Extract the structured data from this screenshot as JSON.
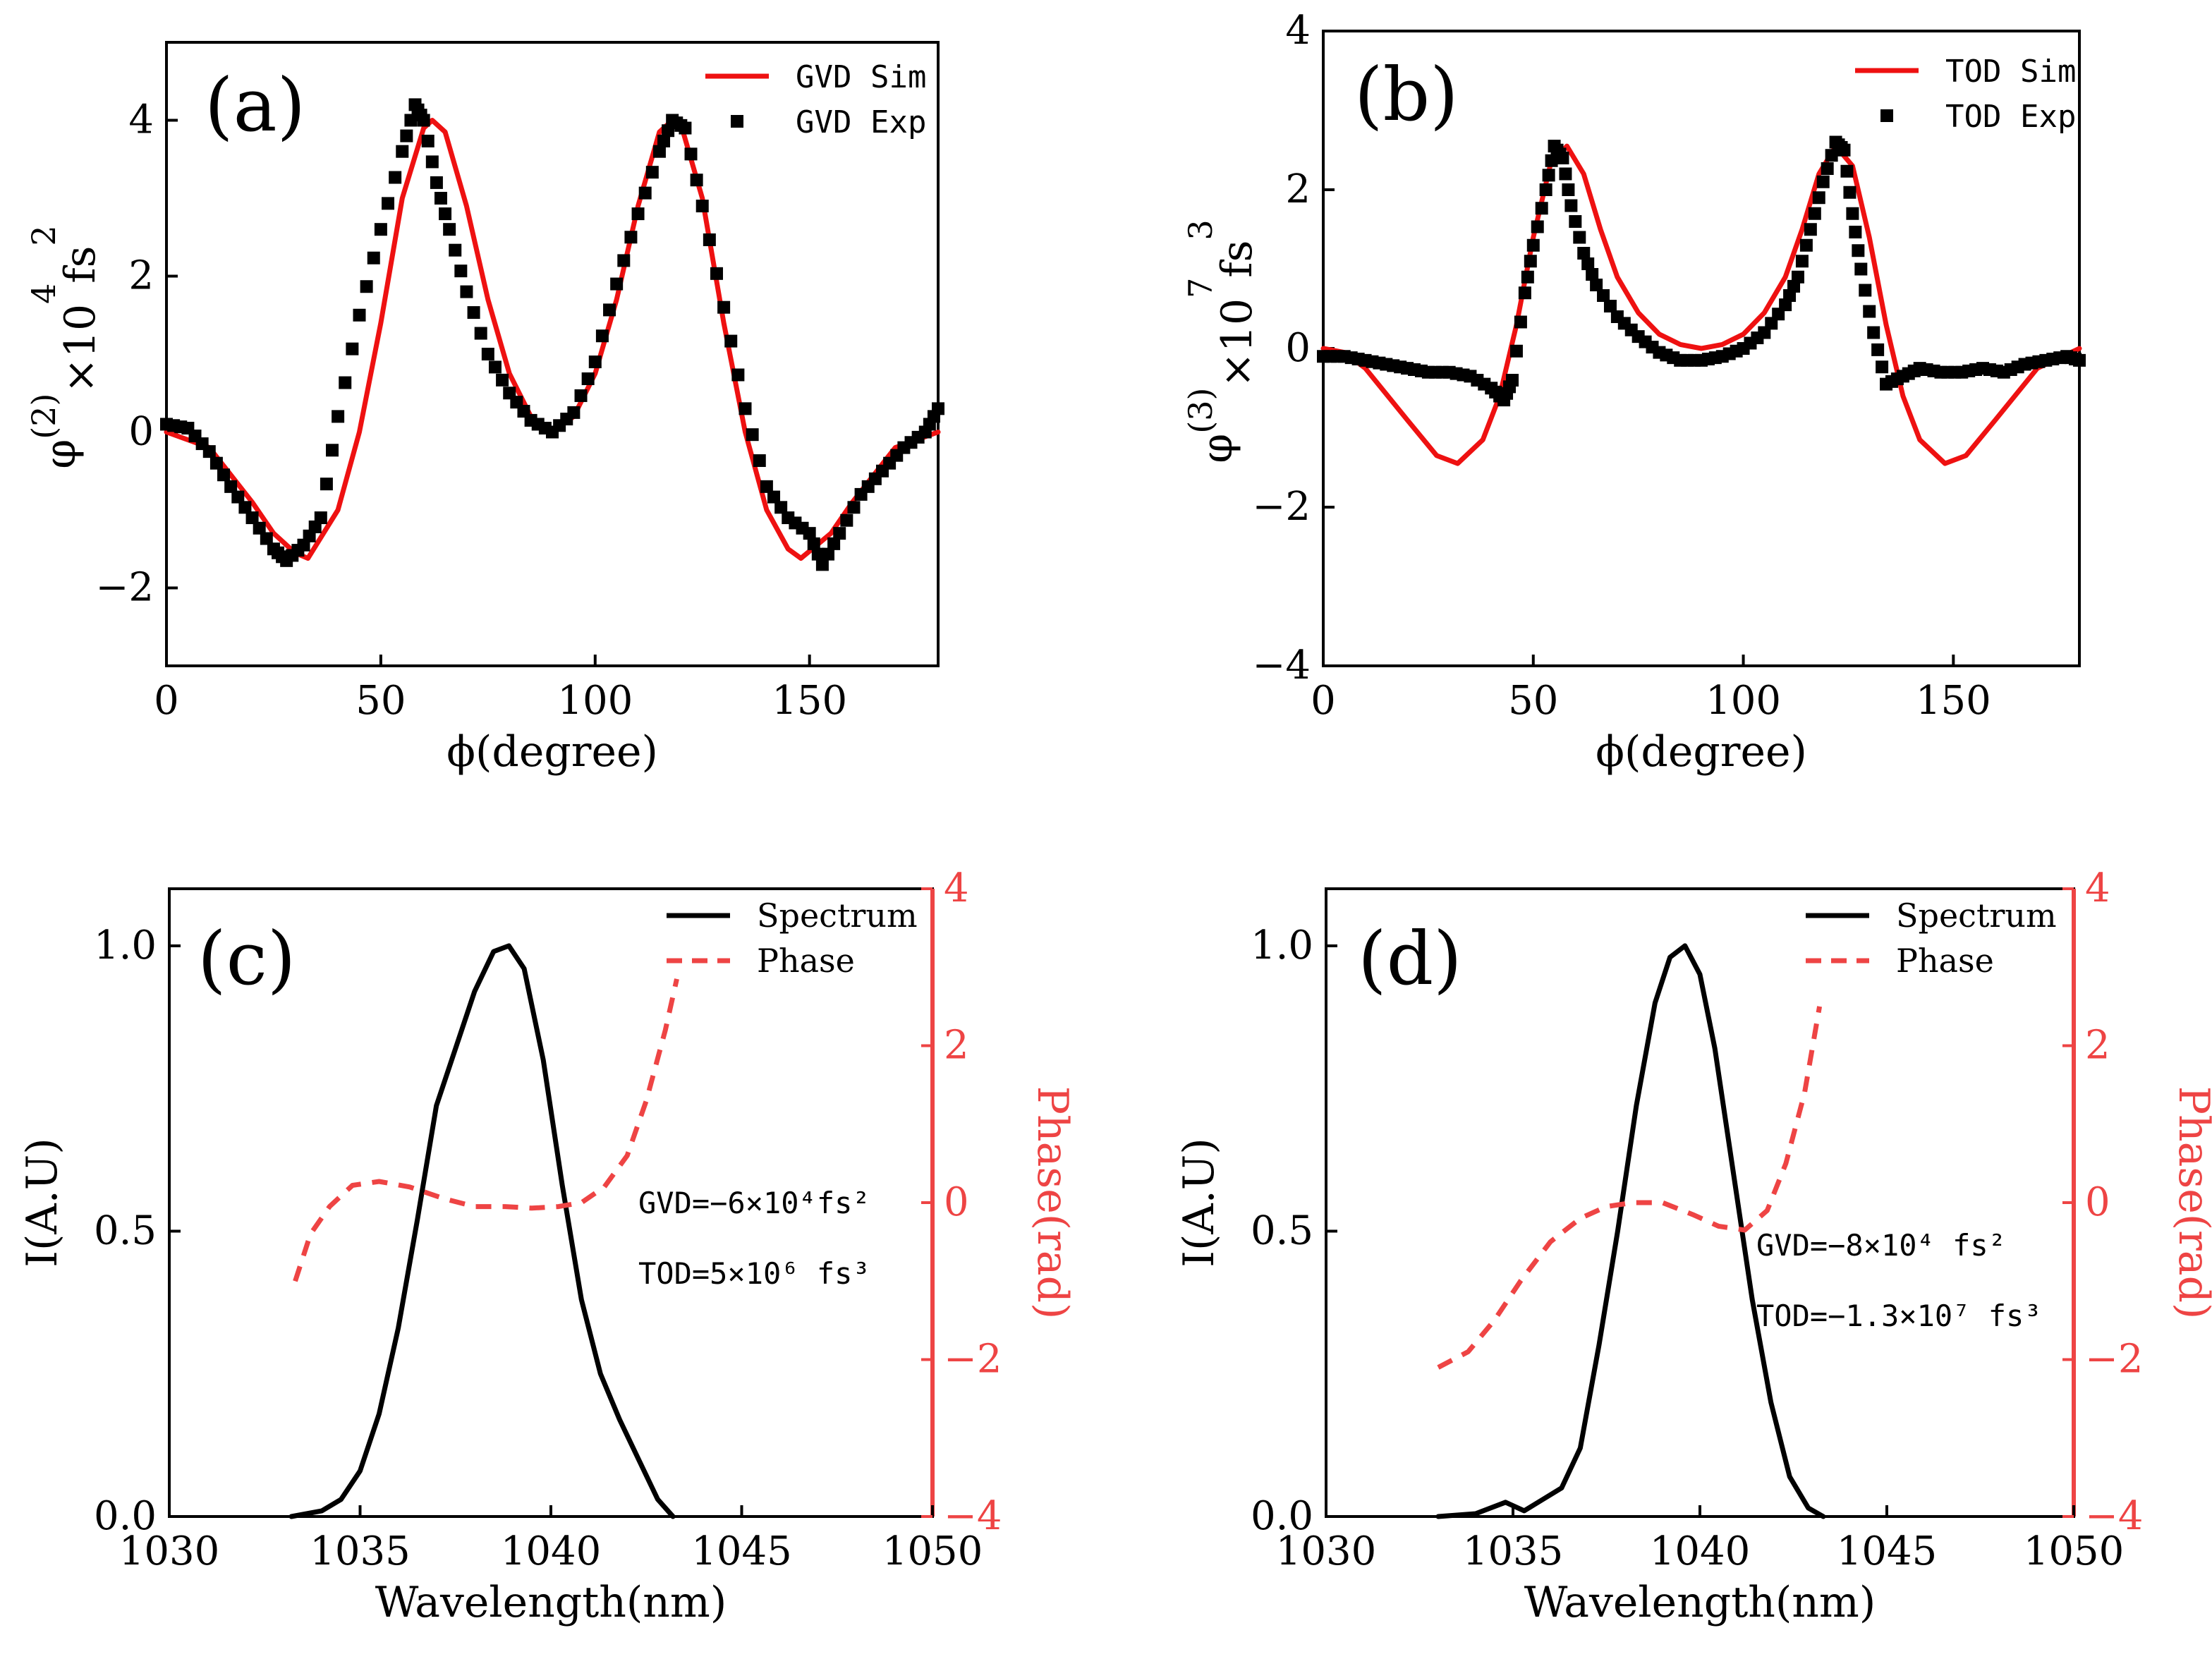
{
  "chart_data": [
    {
      "id": "a",
      "type": "line",
      "panel_label": "(a)",
      "xlabel": "ϕ(degree)",
      "ylabel": "φ(2)×10⁴fs²",
      "ylabel_parts": {
        "base": "φ",
        "order": "(2)",
        "scale": "×10",
        "exp": "4",
        "unit": "fs",
        "unit_exp": "2"
      },
      "xlim": [
        0,
        180
      ],
      "ylim": [
        -3,
        5
      ],
      "xticks": [
        0,
        50,
        100,
        150
      ],
      "yticks": [
        -2,
        0,
        2,
        4
      ],
      "legend": {
        "position": "top-right",
        "entries": [
          "GVD Sim",
          "GVD Exp"
        ]
      },
      "series": [
        {
          "name": "GVD Sim",
          "style": "line",
          "color": "#ee1111",
          "x": [
            0,
            10,
            20,
            25,
            30,
            33,
            40,
            45,
            50,
            55,
            60,
            62,
            65,
            70,
            75,
            80,
            85,
            90,
            95,
            100,
            105,
            110,
            115,
            118,
            120,
            125,
            130,
            135,
            140,
            145,
            148,
            155,
            160,
            170,
            180
          ],
          "y": [
            0,
            -0.2,
            -0.9,
            -1.3,
            -1.55,
            -1.62,
            -1.0,
            0.0,
            1.4,
            3.0,
            3.9,
            4.0,
            3.85,
            2.9,
            1.7,
            0.75,
            0.2,
            0.0,
            0.2,
            0.75,
            1.7,
            2.9,
            3.85,
            4.0,
            3.95,
            3.0,
            1.4,
            0.0,
            -1.0,
            -1.5,
            -1.62,
            -1.3,
            -0.9,
            -0.2,
            0
          ]
        },
        {
          "name": "GVD Exp",
          "style": "scatter",
          "color": "#000000",
          "x": [
            0,
            5,
            10,
            15,
            20,
            25,
            28,
            32,
            36,
            40,
            45,
            50,
            55,
            58,
            60,
            63,
            66,
            70,
            75,
            80,
            85,
            90,
            95,
            100,
            105,
            110,
            115,
            118,
            121,
            125,
            130,
            135,
            140,
            145,
            150,
            153,
            157,
            162,
            167,
            172,
            177,
            180
          ],
          "y": [
            0.1,
            0.05,
            -0.25,
            -0.7,
            -1.1,
            -1.5,
            -1.65,
            -1.45,
            -1.1,
            0.2,
            1.5,
            2.6,
            3.6,
            4.2,
            4.0,
            3.2,
            2.6,
            1.8,
            1.0,
            0.5,
            0.15,
            0.0,
            0.25,
            0.9,
            1.9,
            2.8,
            3.6,
            4.0,
            3.9,
            2.9,
            1.6,
            0.3,
            -0.7,
            -1.1,
            -1.3,
            -1.7,
            -1.3,
            -0.8,
            -0.5,
            -0.2,
            0.0,
            0.3
          ]
        }
      ]
    },
    {
      "id": "b",
      "type": "line",
      "panel_label": "(b)",
      "xlabel": "ϕ(degree)",
      "ylabel": "φ(3)×10⁷fs³",
      "ylabel_parts": {
        "base": "φ",
        "order": "(3)",
        "scale": "×10",
        "exp": "7",
        "unit": "fs",
        "unit_exp": "3"
      },
      "xlim": [
        0,
        180
      ],
      "ylim": [
        -4,
        4
      ],
      "xticks": [
        0,
        50,
        100,
        150
      ],
      "yticks": [
        -4,
        -2,
        0,
        2,
        4
      ],
      "legend": {
        "position": "top-right",
        "entries": [
          "TOD Sim",
          "TOD Exp"
        ]
      },
      "series": [
        {
          "name": "TOD Sim",
          "style": "line",
          "color": "#ee1111",
          "x": [
            0,
            5,
            10,
            20,
            27,
            32,
            38,
            42,
            46,
            50,
            54,
            58,
            62,
            66,
            70,
            75,
            80,
            85,
            90,
            95,
            100,
            105,
            110,
            114,
            118,
            122,
            126,
            130,
            134,
            138,
            142,
            148,
            153,
            160,
            170,
            180
          ],
          "y": [
            0,
            -0.05,
            -0.25,
            -0.9,
            -1.35,
            -1.45,
            -1.15,
            -0.6,
            0.3,
            1.4,
            2.3,
            2.55,
            2.2,
            1.5,
            0.9,
            0.45,
            0.18,
            0.05,
            0.0,
            0.05,
            0.18,
            0.45,
            0.9,
            1.5,
            2.2,
            2.55,
            2.3,
            1.4,
            0.3,
            -0.6,
            -1.15,
            -1.45,
            -1.35,
            -0.9,
            -0.25,
            0
          ]
        },
        {
          "name": "TOD Exp",
          "style": "scatter",
          "color": "#000000",
          "x": [
            0,
            5,
            10,
            15,
            20,
            25,
            30,
            35,
            40,
            43,
            45,
            48,
            50,
            53,
            55,
            57,
            59,
            62,
            65,
            70,
            75,
            80,
            85,
            90,
            95,
            100,
            105,
            110,
            113,
            116,
            119,
            122,
            124,
            126,
            128,
            131,
            134,
            138,
            142,
            147,
            152,
            157,
            162,
            167,
            172,
            177,
            180
          ],
          "y": [
            -0.1,
            -0.1,
            -0.15,
            -0.2,
            -0.25,
            -0.3,
            -0.3,
            -0.35,
            -0.5,
            -0.65,
            -0.4,
            0.7,
            1.3,
            2.0,
            2.55,
            2.4,
            1.8,
            1.2,
            0.8,
            0.4,
            0.15,
            -0.05,
            -0.15,
            -0.15,
            -0.1,
            0.0,
            0.2,
            0.55,
            0.9,
            1.5,
            2.1,
            2.6,
            2.5,
            1.7,
            1.0,
            0.2,
            -0.45,
            -0.35,
            -0.25,
            -0.3,
            -0.3,
            -0.25,
            -0.3,
            -0.2,
            -0.15,
            -0.1,
            -0.15
          ]
        }
      ]
    },
    {
      "id": "c",
      "type": "line",
      "panel_label": "(c)",
      "xlabel": "Wavelength(nm)",
      "ylabel": "I(A.U)",
      "ylabel_right": "Phase(rad)",
      "xlim": [
        1030,
        1050
      ],
      "ylim": [
        0,
        1.1
      ],
      "ylim_right": [
        -4,
        4
      ],
      "xticks": [
        1030,
        1035,
        1040,
        1045,
        1050
      ],
      "yticks": [
        "0.0",
        "0.5",
        "1.0"
      ],
      "yticks_right": [
        -4,
        -2,
        0,
        2,
        4
      ],
      "legend": {
        "position": "top-right",
        "entries": [
          "Spectrum",
          "Phase"
        ]
      },
      "annotation": {
        "gvd": "GVD=−6×10⁴fs²",
        "tod": "TOD=5×10⁶ fs³"
      },
      "series": [
        {
          "name": "Spectrum",
          "style": "line",
          "axis": "left",
          "color": "#000000",
          "x": [
            1033.2,
            1034.0,
            1034.5,
            1035.0,
            1035.5,
            1036.0,
            1036.5,
            1037.0,
            1037.5,
            1038.0,
            1038.5,
            1038.9,
            1039.3,
            1039.8,
            1040.3,
            1040.8,
            1041.3,
            1041.8,
            1042.3,
            1042.8,
            1043.2
          ],
          "y": [
            0.0,
            0.01,
            0.03,
            0.08,
            0.18,
            0.33,
            0.52,
            0.72,
            0.82,
            0.92,
            0.99,
            1.0,
            0.96,
            0.8,
            0.58,
            0.38,
            0.25,
            0.17,
            0.1,
            0.03,
            0.0
          ]
        },
        {
          "name": "Phase",
          "style": "dashed",
          "axis": "right",
          "color": "#ee4444",
          "x": [
            1033.3,
            1033.7,
            1034.2,
            1034.8,
            1035.5,
            1036.3,
            1037.2,
            1038.0,
            1038.8,
            1039.5,
            1040.2,
            1040.8,
            1041.4,
            1042.0,
            1042.5,
            1043.0,
            1043.3
          ],
          "y": [
            -1.0,
            -0.4,
            -0.05,
            0.22,
            0.27,
            0.2,
            0.05,
            -0.05,
            -0.05,
            -0.07,
            -0.05,
            0.0,
            0.2,
            0.6,
            1.3,
            2.2,
            2.85
          ]
        }
      ]
    },
    {
      "id": "d",
      "type": "line",
      "panel_label": "(d)",
      "xlabel": "Wavelength(nm)",
      "ylabel": "I(A.U)",
      "ylabel_right": "Phase(rad)",
      "xlim": [
        1030,
        1050
      ],
      "ylim": [
        0,
        1.1
      ],
      "ylim_right": [
        -4,
        4
      ],
      "xticks": [
        1030,
        1035,
        1040,
        1045,
        1050
      ],
      "yticks": [
        "0.0",
        "0.5",
        "1.0"
      ],
      "yticks_right": [
        -4,
        -2,
        0,
        2,
        4
      ],
      "legend": {
        "position": "top-right",
        "entries": [
          "Spectrum",
          "Phase"
        ]
      },
      "annotation": {
        "gvd": "GVD=−8×10⁴ fs²",
        "tod": "TOD=−1.3×10⁷ fs³"
      },
      "series": [
        {
          "name": "Spectrum",
          "style": "line",
          "axis": "left",
          "color": "#000000",
          "x": [
            1033.0,
            1034.0,
            1034.8,
            1035.3,
            1035.8,
            1036.3,
            1036.8,
            1037.3,
            1037.8,
            1038.3,
            1038.8,
            1039.2,
            1039.6,
            1040.0,
            1040.4,
            1040.9,
            1041.4,
            1041.9,
            1042.4,
            1042.9,
            1043.3
          ],
          "y": [
            0.0,
            0.005,
            0.025,
            0.01,
            0.03,
            0.05,
            0.12,
            0.3,
            0.5,
            0.72,
            0.9,
            0.98,
            1.0,
            0.95,
            0.82,
            0.6,
            0.38,
            0.2,
            0.07,
            0.015,
            0.0
          ]
        },
        {
          "name": "Phase",
          "style": "dashed",
          "axis": "right",
          "color": "#ee4444",
          "x": [
            1033.0,
            1033.8,
            1034.5,
            1035.2,
            1036.0,
            1036.8,
            1037.5,
            1038.2,
            1039.0,
            1039.8,
            1040.5,
            1041.2,
            1041.8,
            1042.3,
            1042.8,
            1043.2
          ],
          "y": [
            -2.1,
            -1.9,
            -1.5,
            -1.0,
            -0.5,
            -0.2,
            -0.05,
            0.0,
            0.0,
            -0.15,
            -0.3,
            -0.35,
            -0.1,
            0.5,
            1.4,
            2.5
          ]
        }
      ]
    }
  ]
}
